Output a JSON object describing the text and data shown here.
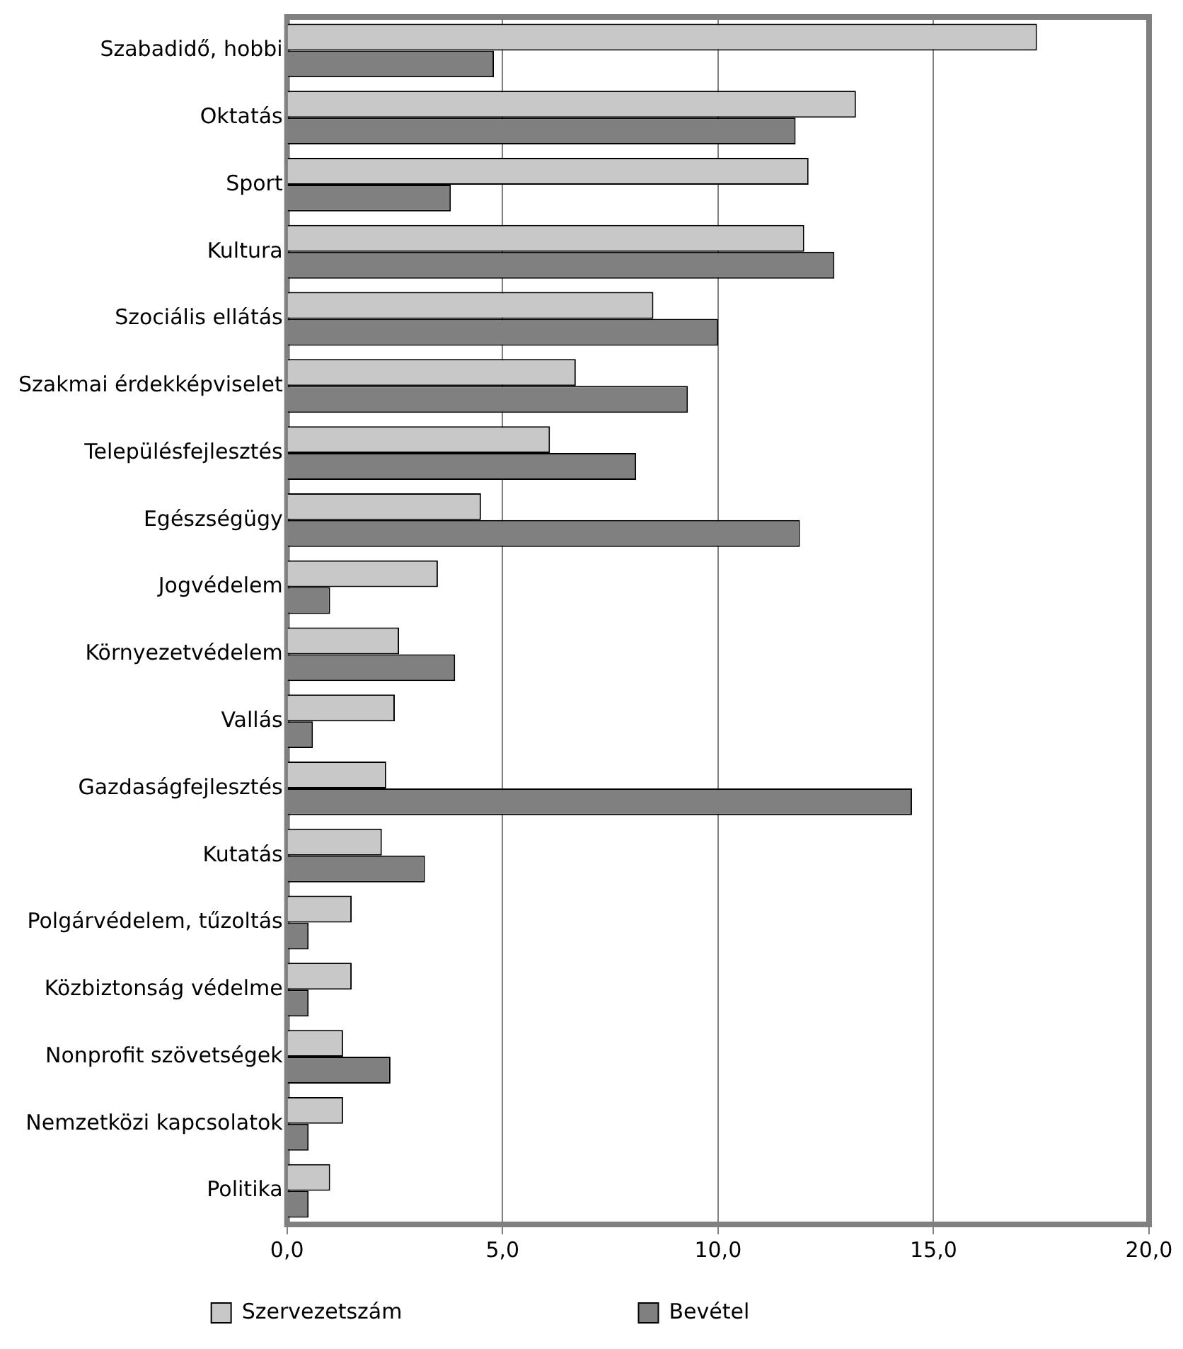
{
  "chart_data": {
    "type": "bar",
    "orientation": "horizontal",
    "categories": [
      "Szabadidő, hobbi",
      "Oktatás",
      "Sport",
      "Kultura",
      "Szociális ellátás",
      "Szakmai érdekképviselet",
      "Településfejlesztés",
      "Egészségügy",
      "Jogvédelem",
      "Környezetvédelem",
      "Vallás",
      "Gazdaságfejlesztés",
      "Kutatás",
      "Polgárvédelem, tűzoltás",
      "Közbiztonság védelme",
      "Nonprofit szövetségek",
      "Nemzetközi kapcsolatok",
      "Politika"
    ],
    "series": [
      {
        "name": "Szervezetszám",
        "color": "#c8c8c8",
        "values": [
          17.4,
          13.2,
          12.1,
          12.0,
          8.5,
          6.7,
          6.1,
          4.5,
          3.5,
          2.6,
          2.5,
          2.3,
          2.2,
          1.5,
          1.5,
          1.3,
          1.3,
          1.0
        ]
      },
      {
        "name": "Bevétel",
        "color": "#808080",
        "values": [
          4.8,
          11.8,
          3.8,
          12.7,
          10.0,
          9.3,
          8.1,
          11.9,
          1.0,
          3.9,
          0.6,
          14.5,
          3.2,
          0.5,
          0.5,
          2.4,
          0.5,
          0.5
        ]
      }
    ],
    "xlim": [
      0,
      20
    ],
    "xticks": [
      {
        "value": 0,
        "label": "0,0"
      },
      {
        "value": 5,
        "label": "5,0"
      },
      {
        "value": 10,
        "label": "10,0"
      },
      {
        "value": 15,
        "label": "15,0"
      },
      {
        "value": 20,
        "label": "20,0"
      }
    ],
    "grid": "x",
    "legend": "bottom"
  }
}
